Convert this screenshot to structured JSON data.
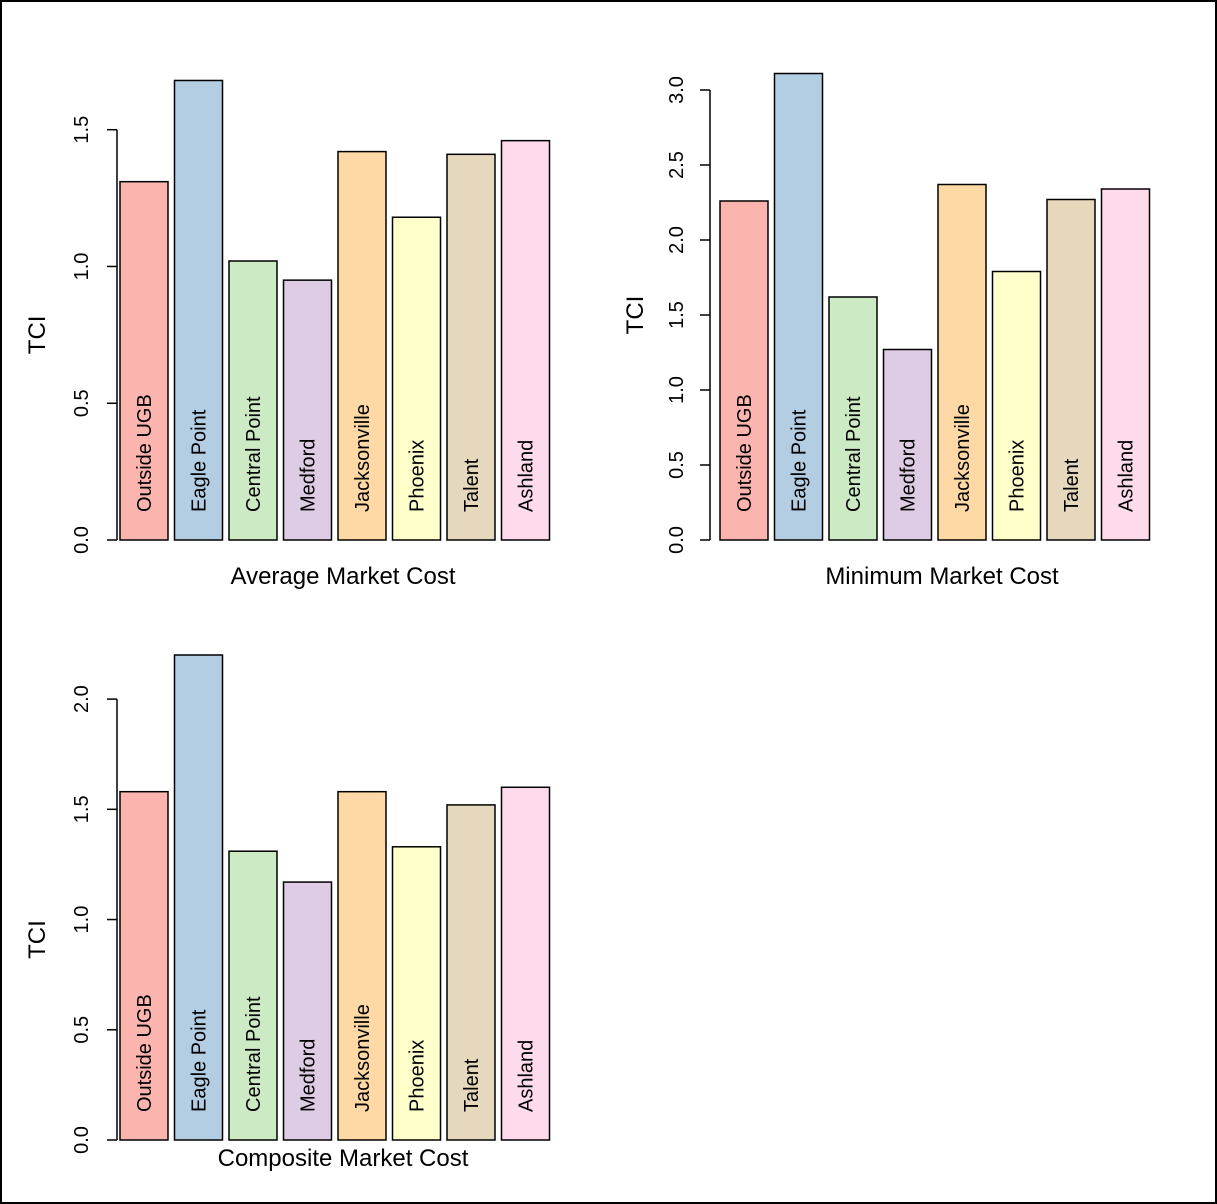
{
  "chart_data": [
    {
      "type": "bar",
      "title": "",
      "xlabel": "Average Market Cost",
      "ylabel": "TCI",
      "ylim": [
        0,
        1.7
      ],
      "yticks": [
        0.0,
        0.5,
        1.0,
        1.5
      ],
      "ytick_labels": [
        "0.0",
        "0.5",
        "1.0",
        "1.5"
      ],
      "categories": [
        "Outside UGB",
        "Eagle Point",
        "Central Point",
        "Medford",
        "Jacksonville",
        "Phoenix",
        "Talent",
        "Ashland"
      ],
      "values": [
        1.31,
        1.68,
        1.02,
        0.95,
        1.42,
        1.18,
        1.41,
        1.46
      ],
      "colors": [
        "#FBB4AE",
        "#B3CDE3",
        "#CCEBC5",
        "#DECBE4",
        "#FED9A6",
        "#FFFFCC",
        "#E5D8BD",
        "#FDDAEC"
      ],
      "grid": false,
      "legend": "none"
    },
    {
      "type": "bar",
      "title": "",
      "xlabel": "Minimum Market Cost",
      "ylabel": "TCI",
      "ylim": [
        0,
        3.1
      ],
      "yticks": [
        0.0,
        0.5,
        1.0,
        1.5,
        2.0,
        2.5,
        3.0
      ],
      "ytick_labels": [
        "0.0",
        "0.5",
        "1.0",
        "1.5",
        "2.0",
        "2.5",
        "3.0"
      ],
      "categories": [
        "Outside UGB",
        "Eagle Point",
        "Central Point",
        "Medford",
        "Jacksonville",
        "Phoenix",
        "Talent",
        "Ashland"
      ],
      "values": [
        2.26,
        3.11,
        1.62,
        1.27,
        2.37,
        1.79,
        2.27,
        2.34
      ],
      "colors": [
        "#FBB4AE",
        "#B3CDE3",
        "#CCEBC5",
        "#DECBE4",
        "#FED9A6",
        "#FFFFCC",
        "#E5D8BD",
        "#FDDAEC"
      ],
      "grid": false,
      "legend": "none"
    },
    {
      "type": "bar",
      "title": "",
      "xlabel": "Composite Market Cost",
      "ylabel": "TCI",
      "ylim": [
        0,
        2.2
      ],
      "yticks": [
        0.0,
        0.5,
        1.0,
        1.5,
        2.0
      ],
      "ytick_labels": [
        "0.0",
        "0.5",
        "1.0",
        "1.5",
        "2.0"
      ],
      "categories": [
        "Outside UGB",
        "Eagle Point",
        "Central Point",
        "Medford",
        "Jacksonville",
        "Phoenix",
        "Talent",
        "Ashland"
      ],
      "values": [
        1.58,
        2.2,
        1.31,
        1.17,
        1.58,
        1.33,
        1.52,
        1.6
      ],
      "colors": [
        "#FBB4AE",
        "#B3CDE3",
        "#CCEBC5",
        "#DECBE4",
        "#FED9A6",
        "#FFFFCC",
        "#E5D8BD",
        "#FDDAEC"
      ],
      "grid": false,
      "legend": "none"
    }
  ]
}
